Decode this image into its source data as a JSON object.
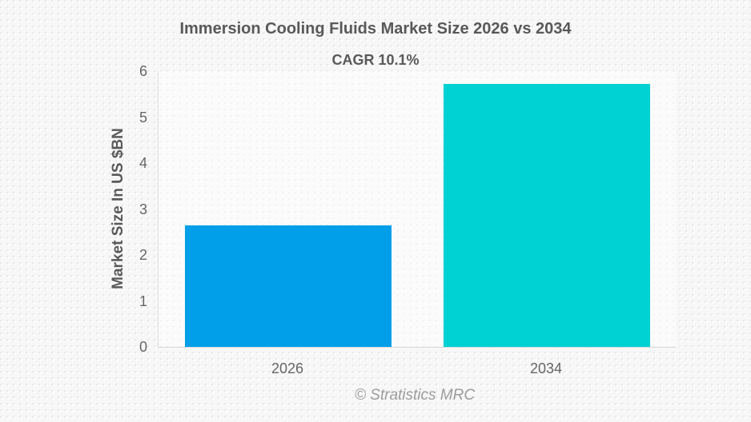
{
  "chart_data": {
    "type": "bar",
    "title": "Immersion Cooling Fluids Market Size 2026 vs 2034",
    "subtitle": "CAGR 10.1%",
    "ylabel": "Market Size In US $BN",
    "xlabel": "",
    "categories": [
      "2026",
      "2034"
    ],
    "values": [
      2.65,
      5.72
    ],
    "ylim": [
      0,
      6
    ],
    "yticks": [
      0,
      1,
      2,
      3,
      4,
      5,
      6
    ],
    "grid": false,
    "legend_position": "none",
    "bar_colors": [
      "#019fe9",
      "#00d1d3"
    ]
  },
  "colors": {
    "title_text": "#595959",
    "tick_text": "#666666",
    "axis_line": "#d8d8d8",
    "footer_text": "#9c9c9c",
    "background": "#f7f7f8"
  },
  "footer": {
    "credit": "© Stratistics MRC"
  }
}
